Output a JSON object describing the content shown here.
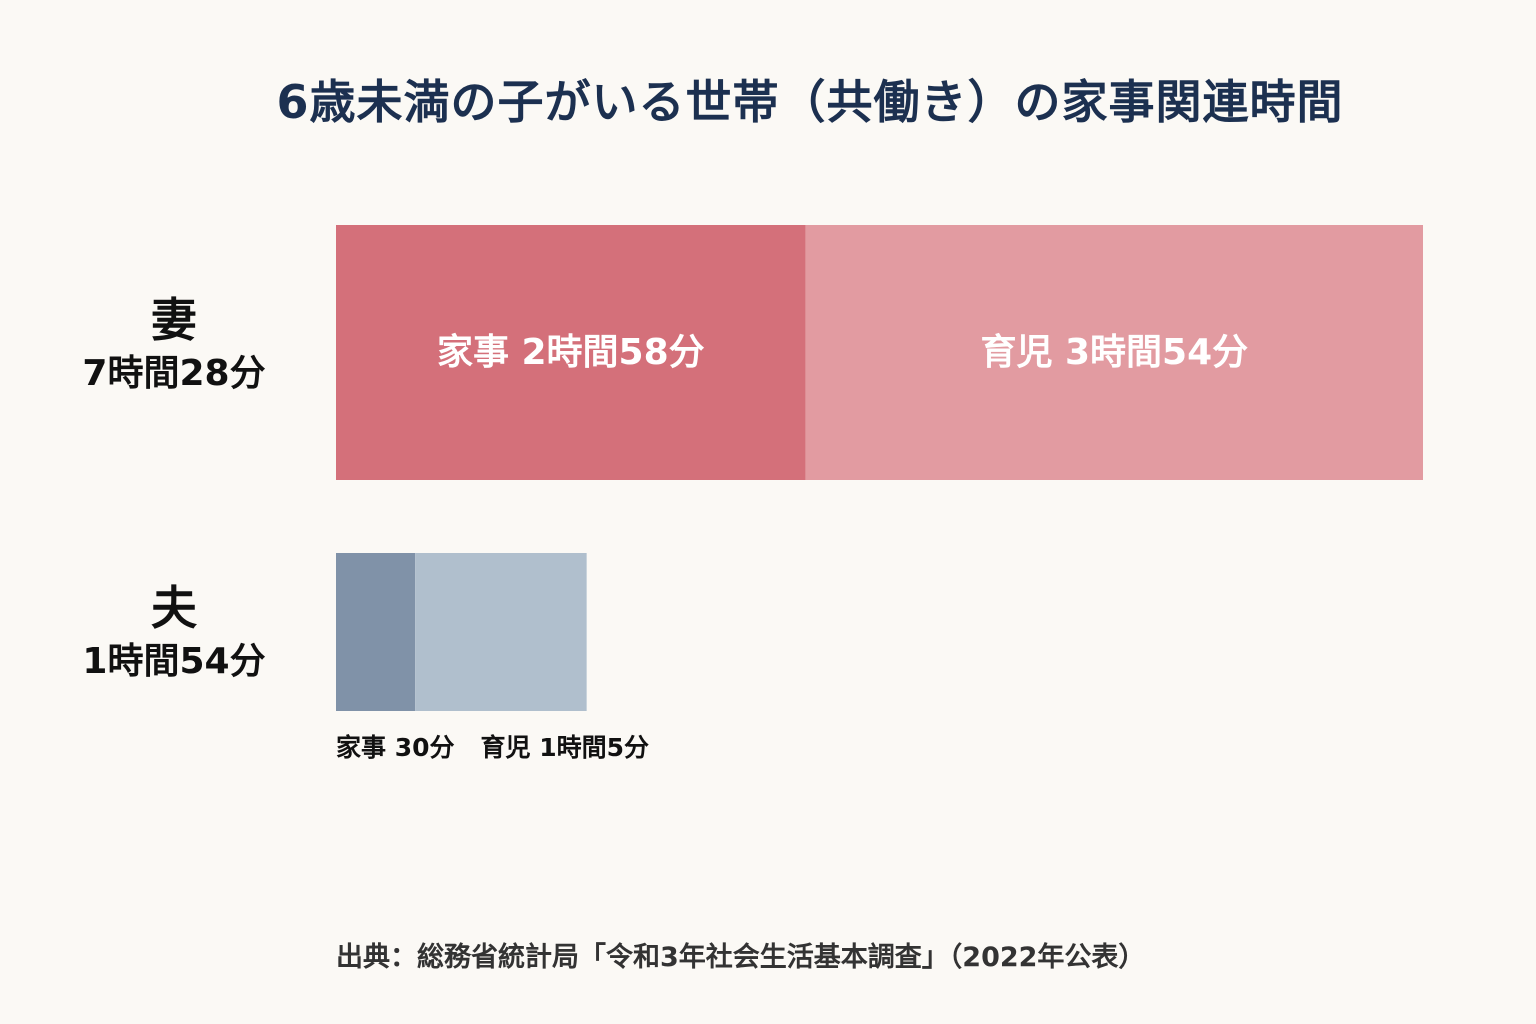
{
  "chart_data": {
    "type": "bar",
    "orientation": "horizontal",
    "stacked": true,
    "title": "6歳未満の子がいる世帯（共働き）の家事関連時間",
    "unit": "minutes",
    "grid": false,
    "rows": [
      {
        "name": "妻",
        "total_label": "7時間28分",
        "total": 448,
        "segments": [
          {
            "label": "家事 2時間58分",
            "value": 178,
            "color": "#d4707a"
          },
          {
            "label": "育児 3時間54分",
            "value": 234,
            "color": "#e29ba1"
          }
        ]
      },
      {
        "name": "夫",
        "total_label": "1時間54分",
        "total": 114,
        "segments": [
          {
            "label": "家事 30分",
            "value": 30,
            "color": "#8092a8"
          },
          {
            "label": "育児 1時間5分",
            "value": 65,
            "color": "#b0bfcd"
          }
        ]
      }
    ],
    "source": "出典：総務省統計局「令和3年社会生活基本調査」（2022年公表）"
  },
  "colors": {
    "background": "#fbf9f5",
    "title": "#1c3050",
    "label_dark": "#111111",
    "label_light": "#ffffff"
  }
}
